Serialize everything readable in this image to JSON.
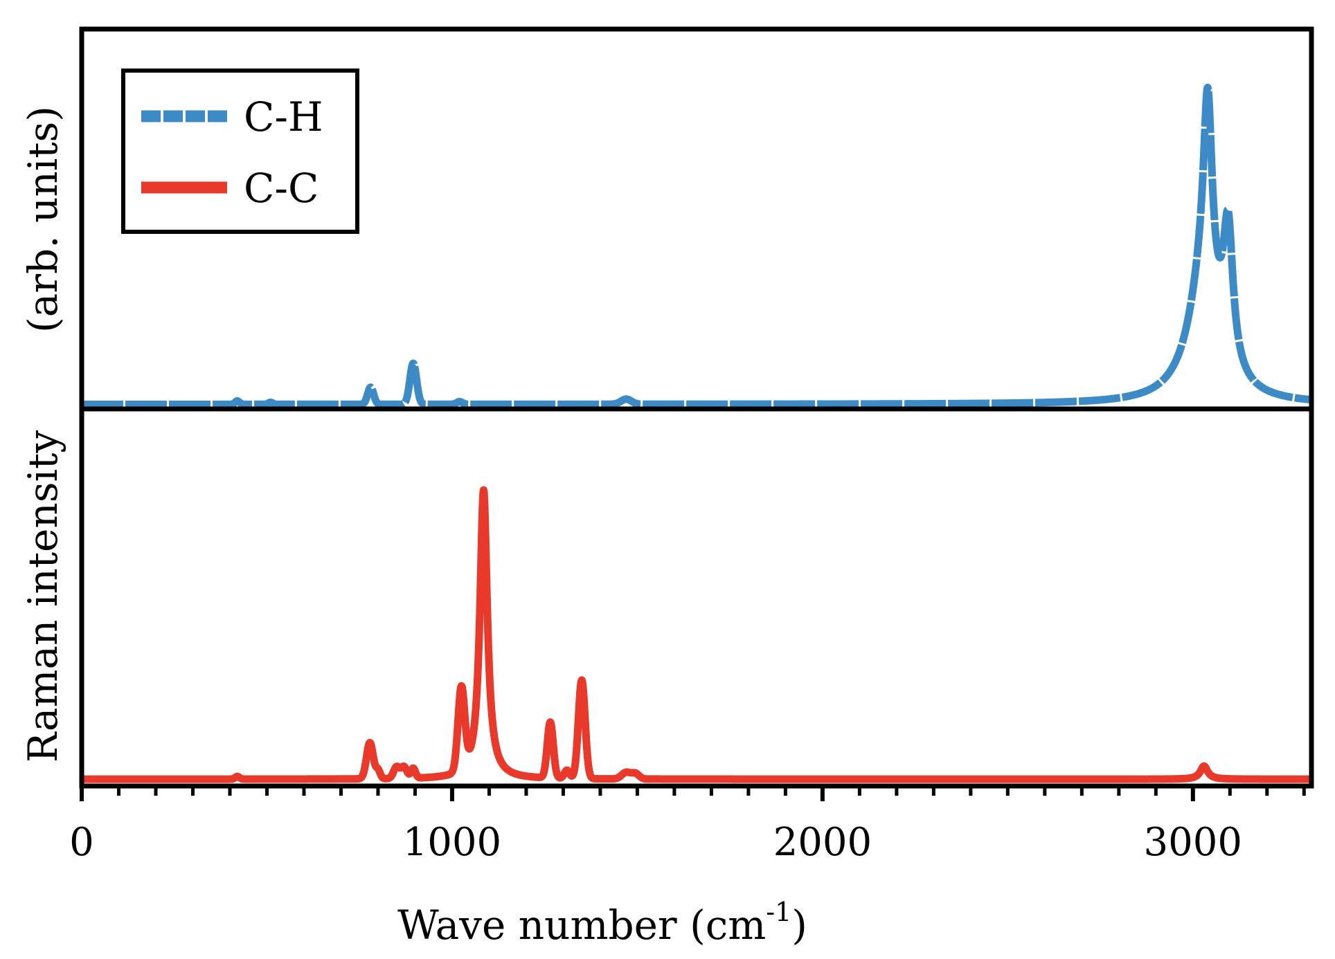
{
  "chart_data": {
    "type": "line",
    "layout": "two stacked panels sharing the x axis",
    "xlabel": "Wave number (cm",
    "xlabel_sup": "-1",
    "xlabel_close": ")",
    "ylabel_top": "(arb. units)",
    "ylabel_bottom": "Raman intensity",
    "xlim": [
      0,
      3320
    ],
    "x_ticks": [
      0,
      1000,
      2000,
      3000
    ],
    "x_tick_labels": [
      "0",
      "1000",
      "2000",
      "3000"
    ],
    "x_minor_step": 100,
    "legend": {
      "placement": "top-left",
      "entries": [
        "C-H",
        "C-C"
      ]
    },
    "series": [
      {
        "name": "C-H",
        "panel": "top",
        "color": "#3d8bc6",
        "style": "dashed",
        "ylim": [
          0,
          100
        ],
        "baseline": 0.3,
        "lorentz_peaks": [
          {
            "center": 3030,
            "height": 36,
            "width": 50
          },
          {
            "center": 3040,
            "height": 55,
            "width": 14
          },
          {
            "center": 3095,
            "height": 40,
            "width": 16
          }
        ],
        "gauss_peaks": [
          {
            "center": 420,
            "height": 1.0,
            "width": 6
          },
          {
            "center": 510,
            "height": 0.6,
            "width": 6
          },
          {
            "center": 780,
            "height": 5.0,
            "width": 8
          },
          {
            "center": 895,
            "height": 12.0,
            "width": 9
          },
          {
            "center": 1020,
            "height": 0.8,
            "width": 8
          },
          {
            "center": 1470,
            "height": 1.5,
            "width": 14
          }
        ]
      },
      {
        "name": "C-C",
        "panel": "bottom",
        "color": "#e8392a",
        "style": "solid",
        "ylim": [
          0,
          100
        ],
        "baseline": 0.8,
        "lorentz_peaks": [
          {
            "center": 1085,
            "height": 88,
            "width": 12
          },
          {
            "center": 3030,
            "height": 4,
            "width": 12
          }
        ],
        "gauss_peaks": [
          {
            "center": 420,
            "height": 0.8,
            "width": 6
          },
          {
            "center": 778,
            "height": 11,
            "width": 9
          },
          {
            "center": 800,
            "height": 2.5,
            "width": 6
          },
          {
            "center": 850,
            "height": 3.5,
            "width": 8
          },
          {
            "center": 870,
            "height": 3.5,
            "width": 8
          },
          {
            "center": 895,
            "height": 3.0,
            "width": 6
          },
          {
            "center": 1025,
            "height": 25,
            "width": 9
          },
          {
            "center": 1265,
            "height": 17,
            "width": 8
          },
          {
            "center": 1310,
            "height": 2.5,
            "width": 7
          },
          {
            "center": 1350,
            "height": 30,
            "width": 9
          },
          {
            "center": 1470,
            "height": 2.0,
            "width": 12
          },
          {
            "center": 1495,
            "height": 1.6,
            "width": 10
          }
        ]
      }
    ]
  }
}
